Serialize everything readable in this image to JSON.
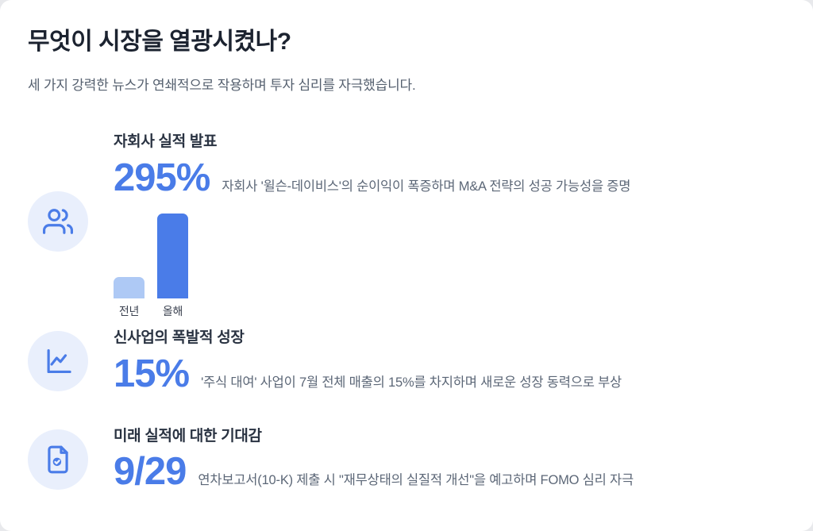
{
  "page": {
    "title": "무엇이 시장을 열광시켰나?",
    "subtitle": "세 가지 강력한 뉴스가 연쇄적으로 작용하며 투자 심리를 자극했습니다."
  },
  "sections": [
    {
      "icon": "users-icon",
      "title": "자회사 실적 발표",
      "stat": "295%",
      "description": "자회사 '윌슨-데이비스'의 순이익이 폭증하며 M&A 전략의 성공 가능성을 증명"
    },
    {
      "icon": "line-chart-icon",
      "title": "신사업의 폭발적 성장",
      "stat": "15%",
      "description": "'주식 대여' 사업이 7월 전체 매출의 15%를 차지하며 새로운 성장 동력으로 부상"
    },
    {
      "icon": "file-check-icon",
      "title": "미래 실적에 대한 기대감",
      "stat": "9/29",
      "description": "연차보고서(10-K) 제출 시 \"재무상태의 실질적 개선\"을 예고하며 FOMO 심리 자극"
    }
  ],
  "chart_data": {
    "type": "bar",
    "categories": [
      "전년",
      "올해"
    ],
    "values": [
      100,
      395
    ],
    "title": "",
    "xlabel": "",
    "ylabel": "",
    "legend": false,
    "grid": false,
    "bar_colors": [
      "#aec9f5",
      "#4a7ce8"
    ]
  },
  "colors": {
    "accent_blue": "#4a7ce8",
    "light_bar_blue": "#aec9f5",
    "icon_circle_bg": "#e9effc",
    "title_dark": "#1c2330",
    "body_gray": "#5c6777",
    "card_bg": "#ffffff"
  }
}
